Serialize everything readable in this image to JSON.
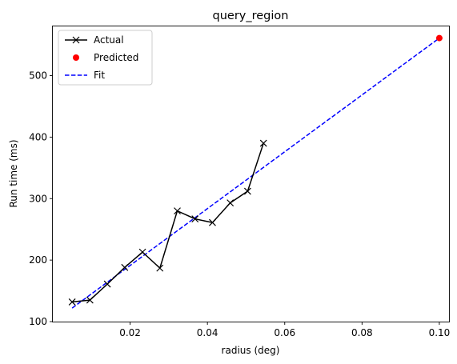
{
  "chart_data": {
    "type": "line",
    "title": "query_region",
    "xlabel": "radius (deg)",
    "ylabel": "Run time (ms)",
    "xlim": [
      0.0,
      0.1025
    ],
    "ylim": [
      100,
      580
    ],
    "xticks": [
      0.02,
      0.04,
      0.06,
      0.08,
      0.1
    ],
    "xtick_labels": [
      "0.02",
      "0.04",
      "0.06",
      "0.08",
      "0.10"
    ],
    "yticks": [
      100,
      200,
      300,
      400,
      500
    ],
    "ytick_labels": [
      "100",
      "200",
      "300",
      "400",
      "500"
    ],
    "grid": false,
    "legend_position": "upper-left",
    "series": [
      {
        "name": "Actual",
        "style": "line-with-x-markers",
        "color": "#000000",
        "x": [
          0.005,
          0.0096,
          0.0141,
          0.0186,
          0.0232,
          0.0277,
          0.0322,
          0.0368,
          0.0413,
          0.0459,
          0.0504,
          0.0545
        ],
        "y": [
          132,
          135,
          161,
          188,
          213,
          187,
          280,
          267,
          261,
          293,
          312,
          390
        ]
      },
      {
        "name": "Predicted",
        "style": "point",
        "color": "#ff0000",
        "x": [
          0.1
        ],
        "y": [
          561
        ]
      },
      {
        "name": "Fit",
        "style": "dashed-line",
        "color": "#0000ff",
        "x": [
          0.005,
          0.1
        ],
        "y": [
          122,
          561
        ]
      }
    ]
  }
}
